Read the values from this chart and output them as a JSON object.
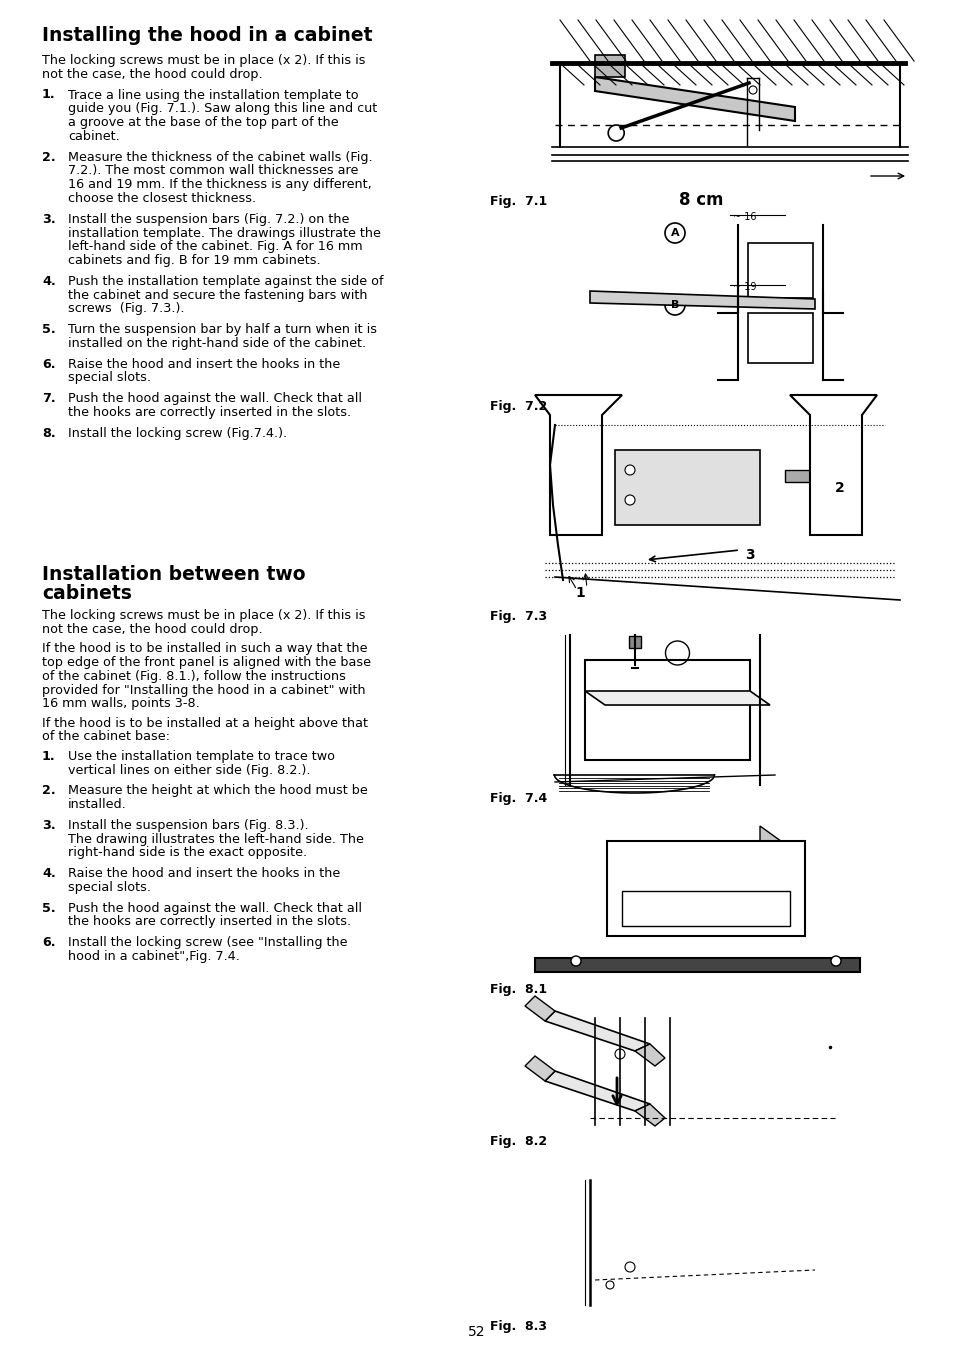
{
  "page_number": "52",
  "bg": "#ffffff",
  "section1_title": "Installing the hood in a cabinet",
  "section1_intro_line1": "The locking screws must be in place (x 2). If this is",
  "section1_intro_line2": "not the case, the hood could drop.",
  "s1_steps": [
    [
      "Trace a line using the installation template to",
      "guide you (Fig. 7.1.). Saw along this line and cut",
      "a groove at the base of the top part of the",
      "cabinet."
    ],
    [
      "Measure the thickness of the cabinet walls (Fig.",
      "7.2.). The most common wall thicknesses are",
      "16 and 19 mm. If the thickness is any different,",
      "choose the closest thickness."
    ],
    [
      "Install the suspension bars (Fig. 7.2.) on the",
      "installation template. The drawings illustrate the",
      "left-hand side of the cabinet. Fig. A for 16 mm",
      "cabinets and fig. B for 19 mm cabinets."
    ],
    [
      "Push the installation template against the side of",
      "the cabinet and secure the fastening bars with",
      "screws  (Fig. 7.3.)."
    ],
    [
      "Turn the suspension bar by half a turn when it is",
      "installed on the right-hand side of the cabinet."
    ],
    [
      "Raise the hood and insert the hooks in the",
      "special slots."
    ],
    [
      "Push the hood against the wall. Check that all",
      "the hooks are correctly inserted in the slots."
    ],
    [
      "Install the locking screw (Fig.7.4.)."
    ]
  ],
  "section2_title_line1": "Installation between two",
  "section2_title_line2": "cabinets",
  "s2_intro1_line1": "The locking screws must be in place (x 2). If this is",
  "s2_intro1_line2": "not the case, the hood could drop.",
  "s2_intro2": [
    "If the hood is to be installed in such a way that the",
    "top edge of the front panel is aligned with the base",
    "of the cabinet (Fig. 8.1.), follow the instructions",
    "provided for \"Installing the hood in a cabinet\" with",
    "16 mm walls, points 3-8."
  ],
  "s2_intro3_line1": "If the hood is to be installed at a height above that",
  "s2_intro3_line2": "of the cabinet base:",
  "s2_steps": [
    [
      "Use the installation template to trace two",
      "vertical lines on either side (Fig. 8.2.)."
    ],
    [
      "Measure the height at which the hood must be",
      "installed."
    ],
    [
      "Install the suspension bars (Fig. 8.3.).",
      "The drawing illustrates the left-hand side. The",
      "right-hand side is the exact opposite."
    ],
    [
      "Raise the hood and insert the hooks in the",
      "special slots."
    ],
    [
      "Push the hood against the wall. Check that all",
      "the hooks are correctly inserted in the slots."
    ],
    [
      "Install the locking screw (see \"Installing the",
      "hood in a cabinet\",Fig. 7.4."
    ]
  ]
}
